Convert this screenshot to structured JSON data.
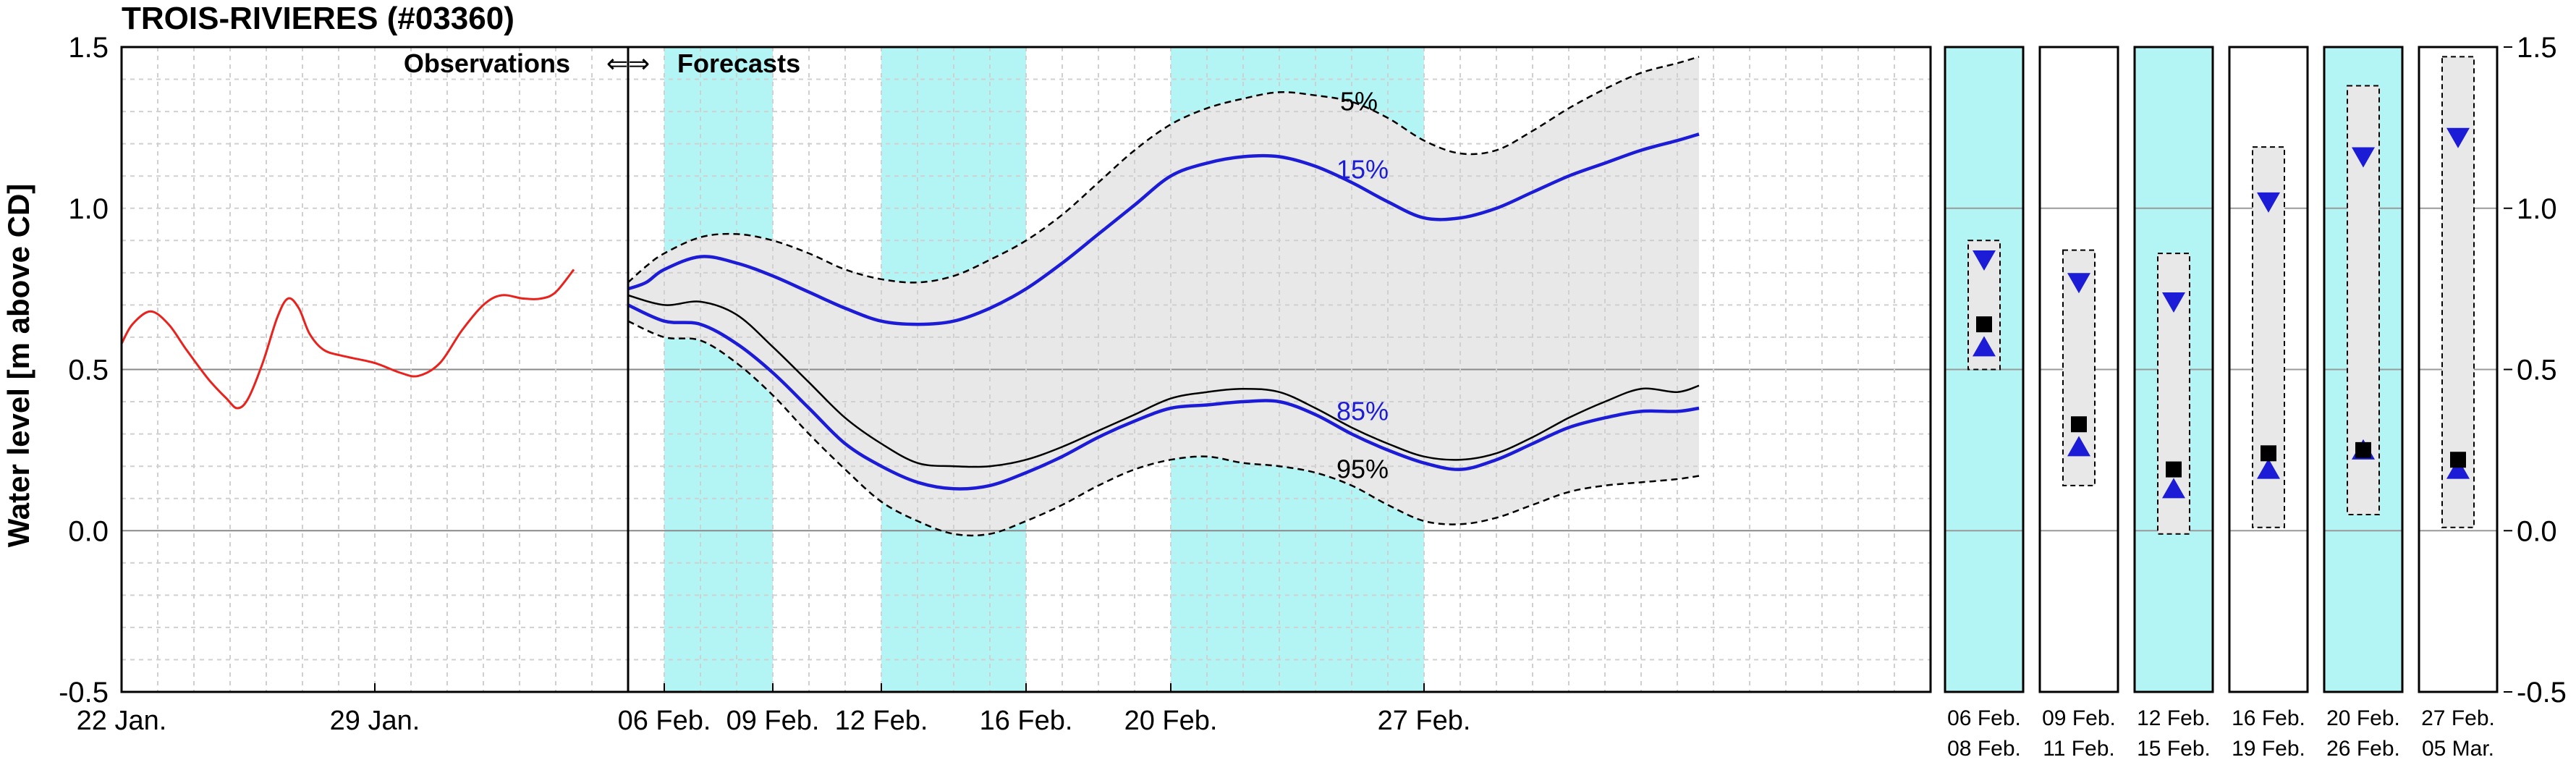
{
  "chart_data": {
    "type": "line",
    "title": "TROIS-RIVIERES (#03360)",
    "ylabel": "Water level [m above CD]",
    "xlabel": "",
    "ylim": [
      -0.5,
      1.5
    ],
    "yticks": [
      "1.5",
      "1.0",
      "0.5",
      "0.0",
      "-0.5"
    ],
    "grid": true,
    "xlim_days": [
      0,
      50
    ],
    "xticks": [
      {
        "day": 0,
        "label": "22 Jan."
      },
      {
        "day": 7,
        "label": "29 Jan."
      },
      {
        "day": 15,
        "label": "06 Feb."
      },
      {
        "day": 18,
        "label": "09 Feb."
      },
      {
        "day": 21,
        "label": "12 Feb."
      },
      {
        "day": 25,
        "label": "16 Feb."
      },
      {
        "day": 29,
        "label": "20 Feb."
      },
      {
        "day": 36,
        "label": "27 Feb."
      }
    ],
    "observations_label": "Observations",
    "arrows_label": "⇐⇒",
    "forecasts_label": "Forecasts",
    "forecast_start_day": 14,
    "shaded_periods": [
      [
        15,
        18
      ],
      [
        21,
        25
      ],
      [
        29,
        36
      ]
    ],
    "shade_color": "#b3f5f5",
    "band_color": "#e8e8e8",
    "series": [
      {
        "kind": "observed",
        "color": "#e8231e",
        "points": [
          [
            0,
            0.58
          ],
          [
            0.3,
            0.64
          ],
          [
            0.8,
            0.68
          ],
          [
            1.3,
            0.64
          ],
          [
            1.8,
            0.56
          ],
          [
            2.4,
            0.47
          ],
          [
            2.9,
            0.41
          ],
          [
            3.2,
            0.38
          ],
          [
            3.5,
            0.41
          ],
          [
            3.9,
            0.52
          ],
          [
            4.3,
            0.66
          ],
          [
            4.6,
            0.72
          ],
          [
            4.9,
            0.69
          ],
          [
            5.2,
            0.61
          ],
          [
            5.6,
            0.56
          ],
          [
            6.2,
            0.54
          ],
          [
            7.0,
            0.52
          ],
          [
            7.7,
            0.49
          ],
          [
            8.2,
            0.48
          ],
          [
            8.8,
            0.52
          ],
          [
            9.4,
            0.62
          ],
          [
            10.0,
            0.7
          ],
          [
            10.5,
            0.73
          ],
          [
            11.1,
            0.72
          ],
          [
            11.6,
            0.72
          ],
          [
            12.0,
            0.74
          ],
          [
            12.5,
            0.81
          ]
        ]
      },
      {
        "kind": "percentile",
        "name": "5%",
        "label": "5%",
        "label_day": 34.2,
        "label_value": 1.33,
        "color": "#000000",
        "dashed": true,
        "points": [
          [
            14,
            0.77
          ],
          [
            14.5,
            0.82
          ],
          [
            15,
            0.86
          ],
          [
            16,
            0.91
          ],
          [
            17,
            0.92
          ],
          [
            18,
            0.9
          ],
          [
            19,
            0.86
          ],
          [
            20,
            0.81
          ],
          [
            21,
            0.78
          ],
          [
            22,
            0.77
          ],
          [
            23,
            0.79
          ],
          [
            24,
            0.84
          ],
          [
            25,
            0.9
          ],
          [
            26,
            0.98
          ],
          [
            27,
            1.08
          ],
          [
            28,
            1.18
          ],
          [
            29,
            1.26
          ],
          [
            30,
            1.31
          ],
          [
            31,
            1.34
          ],
          [
            32,
            1.36
          ],
          [
            33,
            1.35
          ],
          [
            34,
            1.33
          ],
          [
            35,
            1.28
          ],
          [
            36,
            1.21
          ],
          [
            37,
            1.17
          ],
          [
            38,
            1.18
          ],
          [
            39,
            1.24
          ],
          [
            40,
            1.31
          ],
          [
            41,
            1.37
          ],
          [
            42,
            1.42
          ],
          [
            43,
            1.45
          ],
          [
            43.6,
            1.47
          ]
        ]
      },
      {
        "kind": "percentile",
        "name": "15%",
        "label": "15%",
        "label_day": 34.3,
        "label_value": 1.12,
        "color": "#1c1cd6",
        "dashed": false,
        "points": [
          [
            14,
            0.75
          ],
          [
            14.5,
            0.77
          ],
          [
            15,
            0.81
          ],
          [
            16,
            0.85
          ],
          [
            17,
            0.83
          ],
          [
            18,
            0.79
          ],
          [
            19,
            0.74
          ],
          [
            20,
            0.69
          ],
          [
            21,
            0.65
          ],
          [
            22,
            0.64
          ],
          [
            23,
            0.65
          ],
          [
            24,
            0.69
          ],
          [
            25,
            0.75
          ],
          [
            26,
            0.83
          ],
          [
            27,
            0.92
          ],
          [
            28,
            1.01
          ],
          [
            29,
            1.1
          ],
          [
            30,
            1.14
          ],
          [
            31,
            1.16
          ],
          [
            32,
            1.16
          ],
          [
            33,
            1.13
          ],
          [
            34,
            1.08
          ],
          [
            35,
            1.02
          ],
          [
            36,
            0.97
          ],
          [
            37,
            0.97
          ],
          [
            38,
            1.0
          ],
          [
            39,
            1.05
          ],
          [
            40,
            1.1
          ],
          [
            41,
            1.14
          ],
          [
            42,
            1.18
          ],
          [
            43,
            1.21
          ],
          [
            43.6,
            1.23
          ]
        ]
      },
      {
        "kind": "median",
        "name": "",
        "color": "#000000",
        "dashed": false,
        "points": [
          [
            14,
            0.73
          ],
          [
            15,
            0.7
          ],
          [
            16,
            0.71
          ],
          [
            17,
            0.67
          ],
          [
            18,
            0.57
          ],
          [
            19,
            0.46
          ],
          [
            20,
            0.35
          ],
          [
            21,
            0.27
          ],
          [
            22,
            0.21
          ],
          [
            23,
            0.2
          ],
          [
            24,
            0.2
          ],
          [
            25,
            0.22
          ],
          [
            26,
            0.26
          ],
          [
            27,
            0.31
          ],
          [
            28,
            0.36
          ],
          [
            29,
            0.41
          ],
          [
            30,
            0.43
          ],
          [
            31,
            0.44
          ],
          [
            32,
            0.43
          ],
          [
            33,
            0.38
          ],
          [
            34,
            0.32
          ],
          [
            35,
            0.27
          ],
          [
            36,
            0.23
          ],
          [
            37,
            0.22
          ],
          [
            38,
            0.24
          ],
          [
            39,
            0.29
          ],
          [
            40,
            0.35
          ],
          [
            41,
            0.4
          ],
          [
            42,
            0.44
          ],
          [
            43,
            0.43
          ],
          [
            43.6,
            0.45
          ]
        ]
      },
      {
        "kind": "percentile",
        "name": "85%",
        "label": "85%",
        "label_day": 34.3,
        "label_value": 0.37,
        "color": "#1c1cd6",
        "dashed": false,
        "points": [
          [
            14,
            0.7
          ],
          [
            15,
            0.65
          ],
          [
            16,
            0.64
          ],
          [
            17,
            0.58
          ],
          [
            18,
            0.49
          ],
          [
            19,
            0.38
          ],
          [
            20,
            0.27
          ],
          [
            21,
            0.2
          ],
          [
            22,
            0.15
          ],
          [
            23,
            0.13
          ],
          [
            24,
            0.14
          ],
          [
            25,
            0.18
          ],
          [
            26,
            0.23
          ],
          [
            27,
            0.29
          ],
          [
            28,
            0.34
          ],
          [
            29,
            0.38
          ],
          [
            30,
            0.39
          ],
          [
            31,
            0.4
          ],
          [
            32,
            0.4
          ],
          [
            33,
            0.36
          ],
          [
            34,
            0.3
          ],
          [
            35,
            0.25
          ],
          [
            36,
            0.21
          ],
          [
            37,
            0.19
          ],
          [
            38,
            0.22
          ],
          [
            39,
            0.27
          ],
          [
            40,
            0.32
          ],
          [
            41,
            0.35
          ],
          [
            42,
            0.37
          ],
          [
            43,
            0.37
          ],
          [
            43.6,
            0.38
          ]
        ]
      },
      {
        "kind": "percentile",
        "name": "95%",
        "label": "95%",
        "label_day": 34.3,
        "label_value": 0.19,
        "color": "#000000",
        "dashed": true,
        "points": [
          [
            14,
            0.65
          ],
          [
            15,
            0.6
          ],
          [
            16,
            0.59
          ],
          [
            17,
            0.52
          ],
          [
            18,
            0.42
          ],
          [
            19,
            0.3
          ],
          [
            20,
            0.19
          ],
          [
            21,
            0.09
          ],
          [
            22,
            0.03
          ],
          [
            23,
            -0.01
          ],
          [
            24,
            -0.01
          ],
          [
            25,
            0.03
          ],
          [
            26,
            0.08
          ],
          [
            27,
            0.14
          ],
          [
            28,
            0.19
          ],
          [
            29,
            0.22
          ],
          [
            30,
            0.23
          ],
          [
            31,
            0.21
          ],
          [
            32,
            0.2
          ],
          [
            33,
            0.18
          ],
          [
            34,
            0.14
          ],
          [
            35,
            0.08
          ],
          [
            36,
            0.03
          ],
          [
            37,
            0.02
          ],
          [
            38,
            0.04
          ],
          [
            39,
            0.08
          ],
          [
            40,
            0.12
          ],
          [
            41,
            0.14
          ],
          [
            42,
            0.15
          ],
          [
            43,
            0.16
          ],
          [
            43.6,
            0.17
          ]
        ]
      }
    ],
    "summary_panels": [
      {
        "date1": "06  Feb.",
        "date2": "08  Feb.",
        "shaded": true,
        "box": [
          0.5,
          0.9
        ],
        "upper_triangle": 0.84,
        "square": 0.64,
        "lower_triangle": 0.57
      },
      {
        "date1": "09  Feb.",
        "date2": "11  Feb.",
        "shaded": false,
        "box": [
          0.14,
          0.87
        ],
        "upper_triangle": 0.77,
        "square": 0.33,
        "lower_triangle": 0.26
      },
      {
        "date1": "12  Feb.",
        "date2": "15  Feb.",
        "shaded": true,
        "box": [
          -0.01,
          0.86
        ],
        "upper_triangle": 0.71,
        "square": 0.19,
        "lower_triangle": 0.13
      },
      {
        "date1": "16  Feb.",
        "date2": "19  Feb.",
        "shaded": false,
        "box": [
          0.01,
          1.19
        ],
        "upper_triangle": 1.02,
        "square": 0.24,
        "lower_triangle": 0.19
      },
      {
        "date1": "20  Feb.",
        "date2": "26  Feb.",
        "shaded": true,
        "box": [
          0.05,
          1.38
        ],
        "upper_triangle": 1.16,
        "square": 0.25,
        "lower_triangle": 0.25
      },
      {
        "date1": "27  Feb.",
        "date2": "05  Mar.",
        "shaded": false,
        "box": [
          0.01,
          1.47
        ],
        "upper_triangle": 1.22,
        "square": 0.22,
        "lower_triangle": 0.19
      }
    ]
  }
}
